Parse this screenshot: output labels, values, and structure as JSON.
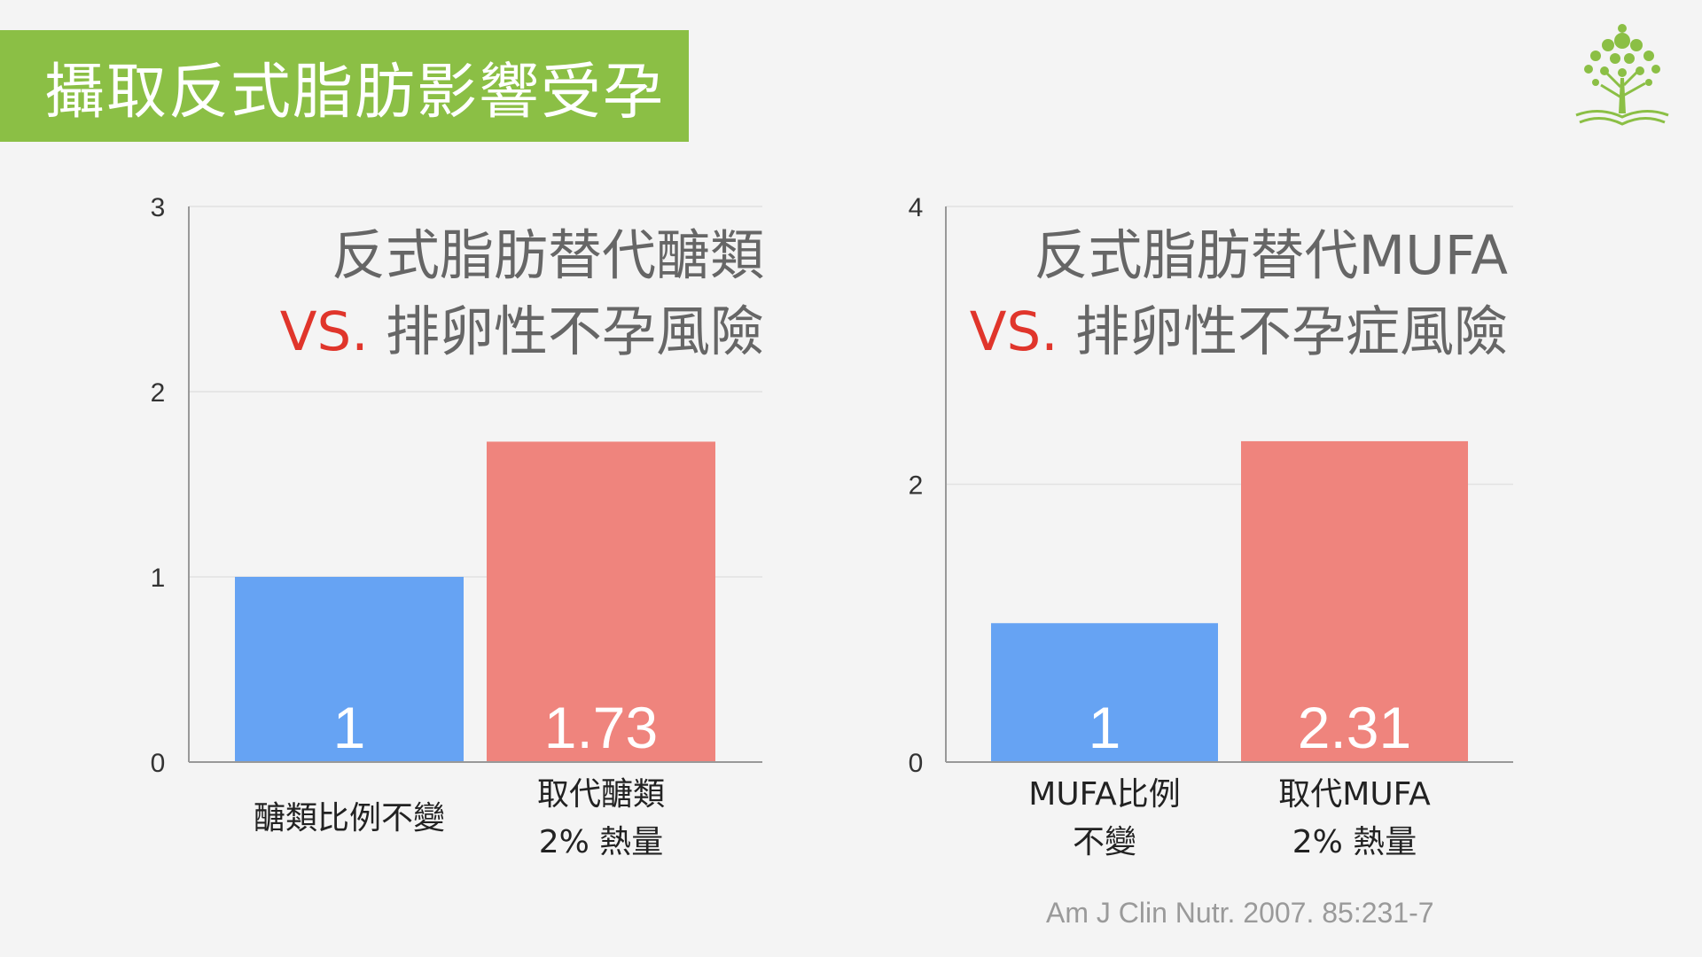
{
  "slide": {
    "title": "攝取反式脂肪影響受孕",
    "source": "Am J Clin Nutr. 2007. 85:231-7",
    "accent_color": "#8bbf45",
    "logo_icon": "tree-book-logo-icon"
  },
  "chart_data": [
    {
      "type": "bar",
      "title_line1": "反式脂肪替代醣類",
      "title_vs": "VS.",
      "title_line2": "排卵性不孕風險",
      "categories": [
        [
          "醣類比例不變"
        ],
        [
          "取代醣類",
          "2% 熱量"
        ]
      ],
      "values": [
        1,
        1.73
      ],
      "value_labels": [
        "1",
        "1.73"
      ],
      "colors": [
        "#66a3f3",
        "#ef847d"
      ],
      "ylim": [
        0,
        3
      ],
      "yticks": [
        0,
        1,
        2,
        3
      ],
      "grid": true
    },
    {
      "type": "bar",
      "title_line1": "反式脂肪替代MUFA",
      "title_vs": "VS.",
      "title_line2": "排卵性不孕症風險",
      "categories": [
        [
          "MUFA比例",
          "不變"
        ],
        [
          "取代MUFA",
          "2% 熱量"
        ]
      ],
      "values": [
        1,
        2.31
      ],
      "value_labels": [
        "1",
        "2.31"
      ],
      "colors": [
        "#66a3f3",
        "#ef847d"
      ],
      "ylim": [
        0,
        4
      ],
      "yticks": [
        0,
        2,
        4
      ],
      "grid": true
    }
  ]
}
